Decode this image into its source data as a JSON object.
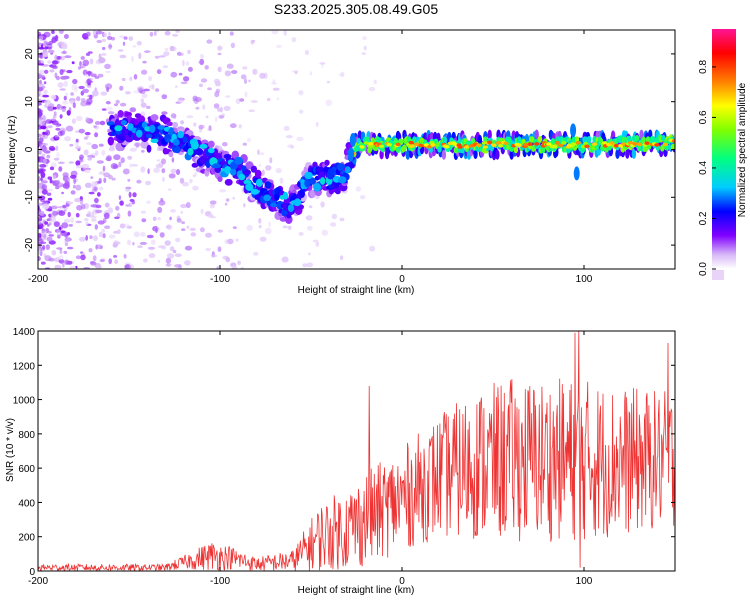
{
  "title": "S233.2025.305.08.49.G05",
  "chart_data": [
    {
      "type": "heatmap",
      "title": "S233.2025.305.08.49.G05",
      "xlabel": "Height of straight line (km)",
      "ylabel": "Frequency (Hz)",
      "xlim": [
        -200,
        150
      ],
      "ylim": [
        -25,
        25
      ],
      "xticks": [
        -200,
        -100,
        0,
        100
      ],
      "yticks": [
        -20,
        -10,
        0,
        10,
        20
      ],
      "colorbar": {
        "label": "Normalized spectral amplitude",
        "range": [
          0,
          0.95
        ],
        "ticks": [
          0.0,
          0.2,
          0.4,
          0.6,
          0.8
        ],
        "tick_labels": [
          "0.0",
          "0.2",
          "0.4",
          "0.6",
          "0.8"
        ],
        "colormap": [
          "#ffffff",
          "#c9a8f0",
          "#8000ff",
          "#0000ff",
          "#00ccff",
          "#00ff80",
          "#80ff00",
          "#ffff00",
          "#ff8000",
          "#ff0000",
          "#ff1493"
        ]
      },
      "ridge": {
        "description_points": [
          {
            "x": -150,
            "y": 4
          },
          {
            "x": -130,
            "y": 3
          },
          {
            "x": -120,
            "y": 1
          },
          {
            "x": -110,
            "y": -1
          },
          {
            "x": -100,
            "y": -3
          },
          {
            "x": -90,
            "y": -4
          },
          {
            "x": -80,
            "y": -8
          },
          {
            "x": -70,
            "y": -10
          },
          {
            "x": -62,
            "y": -12
          },
          {
            "x": -50,
            "y": -6
          },
          {
            "x": -40,
            "y": -6
          },
          {
            "x": -32,
            "y": -5
          },
          {
            "x": -25,
            "y": 1
          },
          {
            "x": 0,
            "y": 1
          },
          {
            "x": 50,
            "y": 1
          },
          {
            "x": 100,
            "y": 1
          },
          {
            "x": 150,
            "y": 1.5
          }
        ]
      }
    },
    {
      "type": "line",
      "xlabel": "Height of straight line (km)",
      "ylabel": "SNR (10 * v/v)",
      "xlim": [
        -200,
        150
      ],
      "ylim": [
        0,
        1400
      ],
      "xticks": [
        -200,
        -100,
        0,
        100
      ],
      "yticks": [
        0,
        200,
        400,
        600,
        800,
        1000,
        1200,
        1400
      ],
      "color": "#ee3333",
      "envelope": [
        {
          "x": -200,
          "base": 20,
          "spread": 25
        },
        {
          "x": -130,
          "base": 20,
          "spread": 25
        },
        {
          "x": -120,
          "base": 50,
          "spread": 50
        },
        {
          "x": -105,
          "base": 90,
          "spread": 110
        },
        {
          "x": -95,
          "base": 80,
          "spread": 90
        },
        {
          "x": -80,
          "base": 40,
          "spread": 50
        },
        {
          "x": -60,
          "base": 60,
          "spread": 80
        },
        {
          "x": -45,
          "base": 200,
          "spread": 250
        },
        {
          "x": -30,
          "base": 250,
          "spread": 300
        },
        {
          "x": -20,
          "base": 300,
          "spread": 350
        },
        {
          "x": 0,
          "base": 420,
          "spread": 380
        },
        {
          "x": 20,
          "base": 550,
          "spread": 450
        },
        {
          "x": 40,
          "base": 620,
          "spread": 550
        },
        {
          "x": 60,
          "base": 650,
          "spread": 600
        },
        {
          "x": 80,
          "base": 650,
          "spread": 600
        },
        {
          "x": 100,
          "base": 650,
          "spread": 600
        },
        {
          "x": 120,
          "base": 640,
          "spread": 550
        },
        {
          "x": 150,
          "base": 650,
          "spread": 500
        }
      ],
      "spikes": [
        {
          "x": -18,
          "y": 1080
        },
        {
          "x": 97,
          "y": 1400
        },
        {
          "x": 95,
          "y": 1390
        },
        {
          "x": 98,
          "y": 20
        },
        {
          "x": 146,
          "y": 1330
        },
        {
          "x": 140,
          "y": 480
        }
      ]
    }
  ]
}
